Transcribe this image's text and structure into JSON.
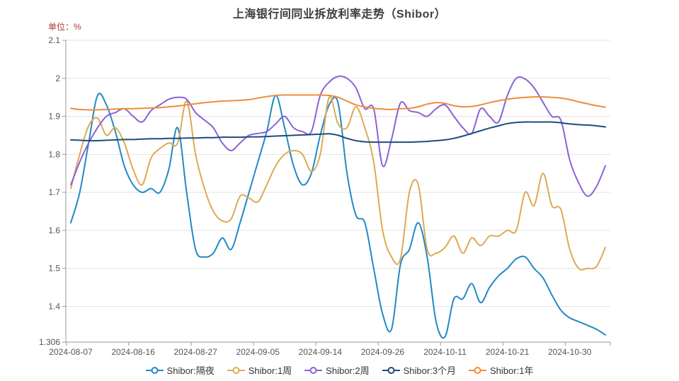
{
  "header": {
    "title": "上海银行间同业拆放利率走势（Shibor）",
    "unit_label": "单位：%"
  },
  "style": {
    "title_color": "#3d3d3d",
    "unit_color": "#b03a32",
    "axis_label_color": "#555555",
    "axis_line_color": "#999999",
    "grid_color": "#e3e3e3",
    "background": "#ffffff"
  },
  "chart_data": {
    "type": "line",
    "title": "上海银行间同业拆放利率走势（Shibor）",
    "ylabel": "单位：%",
    "xlabel": "",
    "smooth": true,
    "grid": true,
    "legend_position": "bottom",
    "ylim": [
      1.306,
      2.1
    ],
    "yticks": [
      2.1,
      2.0,
      1.9,
      1.8,
      1.7,
      1.6,
      1.5,
      1.4,
      1.306
    ],
    "ytick_labels": [
      "2.1",
      "2",
      "1.9",
      "1.8",
      "1.7",
      "1.6",
      "1.5",
      "1.4",
      "1.306"
    ],
    "x": [
      "2024-08-07",
      "2024-08-08",
      "2024-08-09",
      "2024-08-12",
      "2024-08-13",
      "2024-08-14",
      "2024-08-15",
      "2024-08-16",
      "2024-08-19",
      "2024-08-20",
      "2024-08-21",
      "2024-08-22",
      "2024-08-23",
      "2024-08-26",
      "2024-08-27",
      "2024-08-28",
      "2024-08-29",
      "2024-08-30",
      "2024-09-02",
      "2024-09-03",
      "2024-09-04",
      "2024-09-05",
      "2024-09-06",
      "2024-09-09",
      "2024-09-10",
      "2024-09-11",
      "2024-09-12",
      "2024-09-13",
      "2024-09-14",
      "2024-09-18",
      "2024-09-19",
      "2024-09-20",
      "2024-09-23",
      "2024-09-24",
      "2024-09-25",
      "2024-09-26",
      "2024-09-27",
      "2024-09-29",
      "2024-09-30",
      "2024-10-08",
      "2024-10-09",
      "2024-10-10",
      "2024-10-11",
      "2024-10-12",
      "2024-10-14",
      "2024-10-15",
      "2024-10-16",
      "2024-10-17",
      "2024-10-18",
      "2024-10-21",
      "2024-10-22",
      "2024-10-23",
      "2024-10-24",
      "2024-10-25",
      "2024-10-28",
      "2024-10-29",
      "2024-10-30",
      "2024-10-31",
      "2024-11-01",
      "2024-11-04",
      "2024-11-05"
    ],
    "x_tick_labels": [
      {
        "index": 0,
        "label": "2024-08-07"
      },
      {
        "index": 7,
        "label": "2024-08-16"
      },
      {
        "index": 14,
        "label": "2024-08-27"
      },
      {
        "index": 21,
        "label": "2024-09-05"
      },
      {
        "index": 28,
        "label": "2024-09-14"
      },
      {
        "index": 35,
        "label": "2024-09-26"
      },
      {
        "index": 42,
        "label": "2024-10-11"
      },
      {
        "index": 49,
        "label": "2024-10-21"
      },
      {
        "index": 56,
        "label": "2024-10-30"
      }
    ],
    "series": [
      {
        "name": "Shibor:隔夜",
        "color": "#2189c5",
        "values": [
          1.62,
          1.7,
          1.83,
          1.955,
          1.93,
          1.86,
          1.77,
          1.72,
          1.7,
          1.71,
          1.7,
          1.76,
          1.87,
          1.7,
          1.55,
          1.53,
          1.54,
          1.58,
          1.55,
          1.62,
          1.7,
          1.78,
          1.86,
          1.955,
          1.87,
          1.77,
          1.72,
          1.75,
          1.85,
          1.93,
          1.935,
          1.75,
          1.64,
          1.62,
          1.5,
          1.38,
          1.34,
          1.51,
          1.55,
          1.62,
          1.53,
          1.36,
          1.32,
          1.42,
          1.42,
          1.46,
          1.41,
          1.45,
          1.48,
          1.5,
          1.525,
          1.53,
          1.5,
          1.475,
          1.43,
          1.39,
          1.37,
          1.36,
          1.35,
          1.34,
          1.325
        ]
      },
      {
        "name": "Shibor:1周",
        "color": "#ddaa51",
        "values": [
          1.71,
          1.8,
          1.875,
          1.895,
          1.85,
          1.87,
          1.83,
          1.76,
          1.72,
          1.79,
          1.815,
          1.83,
          1.83,
          1.94,
          1.8,
          1.71,
          1.65,
          1.625,
          1.63,
          1.69,
          1.685,
          1.675,
          1.72,
          1.77,
          1.8,
          1.81,
          1.8,
          1.755,
          1.8,
          1.95,
          1.88,
          1.87,
          1.925,
          1.87,
          1.78,
          1.6,
          1.53,
          1.525,
          1.7,
          1.72,
          1.55,
          1.54,
          1.555,
          1.585,
          1.54,
          1.58,
          1.56,
          1.585,
          1.585,
          1.6,
          1.6,
          1.7,
          1.665,
          1.75,
          1.665,
          1.655,
          1.55,
          1.5,
          1.5,
          1.505,
          1.555
        ]
      },
      {
        "name": "Shibor:2周",
        "color": "#8a62d8",
        "values": [
          1.72,
          1.78,
          1.83,
          1.87,
          1.9,
          1.91,
          1.92,
          1.9,
          1.885,
          1.915,
          1.93,
          1.945,
          1.95,
          1.945,
          1.91,
          1.89,
          1.87,
          1.83,
          1.81,
          1.83,
          1.85,
          1.855,
          1.86,
          1.88,
          1.9,
          1.87,
          1.86,
          1.86,
          1.955,
          1.99,
          2.005,
          2.0,
          1.975,
          1.92,
          1.92,
          1.77,
          1.84,
          1.935,
          1.915,
          1.91,
          1.9,
          1.92,
          1.93,
          1.9,
          1.87,
          1.855,
          1.92,
          1.9,
          1.885,
          1.955,
          2.0,
          1.998,
          1.975,
          1.937,
          1.9,
          1.89,
          1.785,
          1.725,
          1.69,
          1.715,
          1.77
        ]
      },
      {
        "name": "Shibor:3个月",
        "color": "#1c4d7d",
        "values": [
          1.838,
          1.837,
          1.836,
          1.836,
          1.837,
          1.838,
          1.839,
          1.839,
          1.84,
          1.841,
          1.841,
          1.842,
          1.842,
          1.843,
          1.843,
          1.844,
          1.844,
          1.845,
          1.845,
          1.845,
          1.846,
          1.846,
          1.847,
          1.848,
          1.849,
          1.85,
          1.851,
          1.852,
          1.853,
          1.854,
          1.85,
          1.842,
          1.836,
          1.833,
          1.832,
          1.832,
          1.832,
          1.832,
          1.832,
          1.833,
          1.834,
          1.836,
          1.838,
          1.842,
          1.848,
          1.855,
          1.862,
          1.869,
          1.875,
          1.881,
          1.884,
          1.885,
          1.885,
          1.885,
          1.885,
          1.883,
          1.88,
          1.878,
          1.877,
          1.875,
          1.872
        ]
      },
      {
        "name": "Shibor:1年",
        "color": "#ef8c3c",
        "values": [
          1.921,
          1.918,
          1.917,
          1.917,
          1.918,
          1.919,
          1.92,
          1.92,
          1.921,
          1.922,
          1.923,
          1.925,
          1.927,
          1.93,
          1.933,
          1.936,
          1.938,
          1.94,
          1.941,
          1.942,
          1.944,
          1.948,
          1.952,
          1.955,
          1.956,
          1.956,
          1.956,
          1.956,
          1.956,
          1.955,
          1.95,
          1.94,
          1.93,
          1.925,
          1.921,
          1.919,
          1.918,
          1.92,
          1.921,
          1.925,
          1.932,
          1.936,
          1.934,
          1.928,
          1.925,
          1.926,
          1.93,
          1.936,
          1.941,
          1.945,
          1.948,
          1.95,
          1.951,
          1.951,
          1.95,
          1.948,
          1.944,
          1.938,
          1.933,
          1.928,
          1.924
        ]
      }
    ]
  }
}
